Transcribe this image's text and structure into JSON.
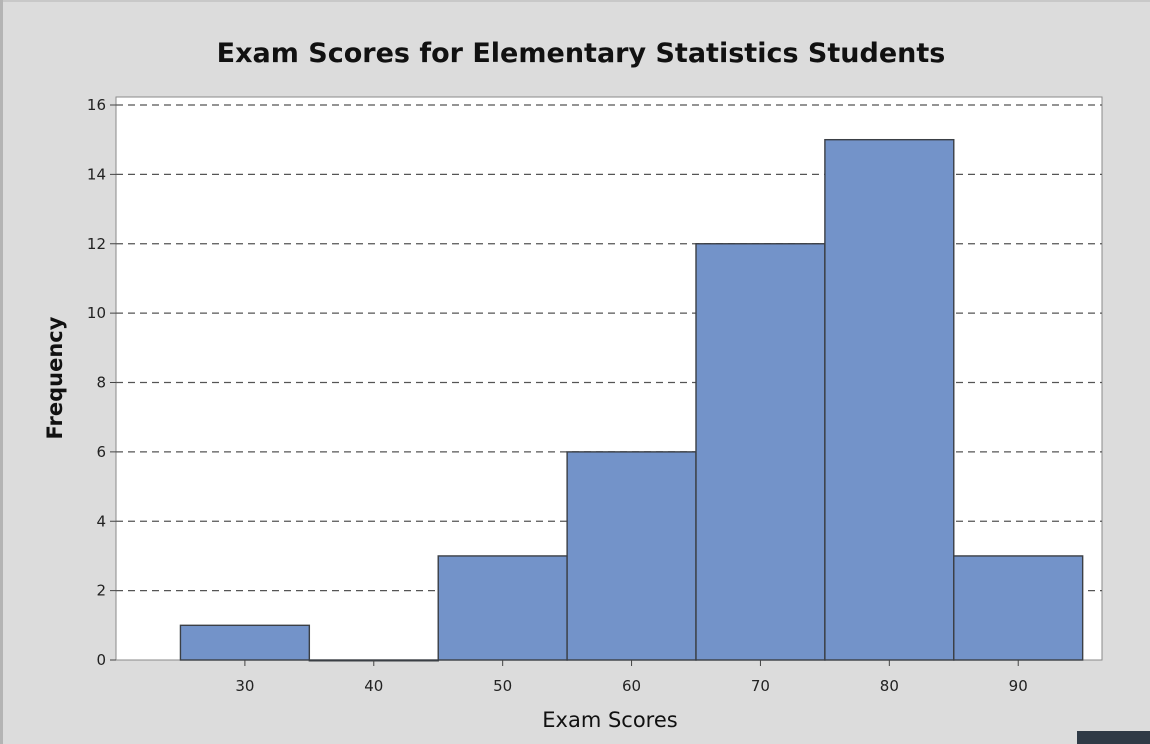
{
  "chart_data": {
    "type": "bar",
    "title": "Exam Scores for Elementary Statistics Students",
    "xlabel": "Exam Scores",
    "ylabel": "Frequency",
    "categories": [
      "30",
      "40",
      "50",
      "60",
      "70",
      "80",
      "90"
    ],
    "x": [
      30,
      40,
      50,
      60,
      70,
      80,
      90
    ],
    "values": [
      1,
      0,
      3,
      6,
      12,
      15,
      3
    ],
    "bin_width": 10,
    "xlim": [
      20,
      96.5
    ],
    "ylim": [
      0,
      16
    ],
    "yticks": [
      0,
      2,
      4,
      6,
      8,
      10,
      12,
      14,
      16
    ],
    "grid": "horizontal dashed",
    "colors": {
      "bar_fill": "#7393c9",
      "bar_edge": "#3b3f45",
      "plot_background": "#ffffff",
      "frame_background": "#dcdcdc",
      "gridline": "#555555"
    }
  }
}
